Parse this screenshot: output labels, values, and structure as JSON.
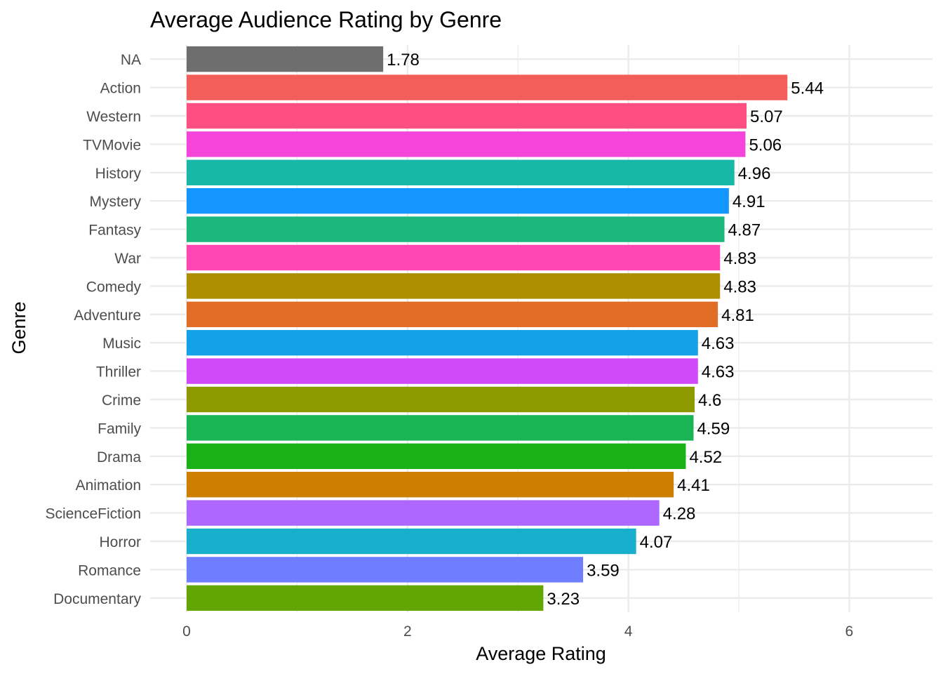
{
  "chart_data": {
    "type": "bar",
    "orientation": "horizontal",
    "title": "Average Audience Rating by Genre",
    "xlabel": "Average Rating",
    "ylabel": "Genre",
    "xlim": [
      0,
      6.8
    ],
    "x_ticks": [
      0,
      2,
      4,
      6
    ],
    "grid": true,
    "legend": "none",
    "categories": [
      "NA",
      "Action",
      "Western",
      "TVMovie",
      "History",
      "Mystery",
      "Fantasy",
      "War",
      "Comedy",
      "Adventure",
      "Music",
      "Thriller",
      "Crime",
      "Family",
      "Drama",
      "Animation",
      "ScienceFiction",
      "Horror",
      "Romance",
      "Documentary"
    ],
    "values": [
      1.78,
      5.44,
      5.07,
      5.06,
      4.96,
      4.91,
      4.87,
      4.83,
      4.83,
      4.81,
      4.63,
      4.63,
      4.6,
      4.59,
      4.52,
      4.41,
      4.28,
      4.07,
      3.59,
      3.23
    ],
    "value_labels": [
      "1.78",
      "5.44",
      "5.07",
      "5.06",
      "4.96",
      "4.91",
      "4.87",
      "4.83",
      "4.83",
      "4.81",
      "4.63",
      "4.63",
      "4.6",
      "4.59",
      "4.52",
      "4.41",
      "4.28",
      "4.07",
      "3.59",
      "3.23"
    ],
    "colors": [
      "#6e6e6e",
      "#f35e5a",
      "#ff4f80",
      "#f544d9",
      "#17b8a6",
      "#1396ff",
      "#1bb77c",
      "#ff46b2",
      "#ad8e00",
      "#e26d27",
      "#13a2e8",
      "#d14afa",
      "#8c9a00",
      "#19b554",
      "#19b116",
      "#cd8000",
      "#ad67ff",
      "#18afcd",
      "#6f7dff",
      "#62a603"
    ]
  }
}
